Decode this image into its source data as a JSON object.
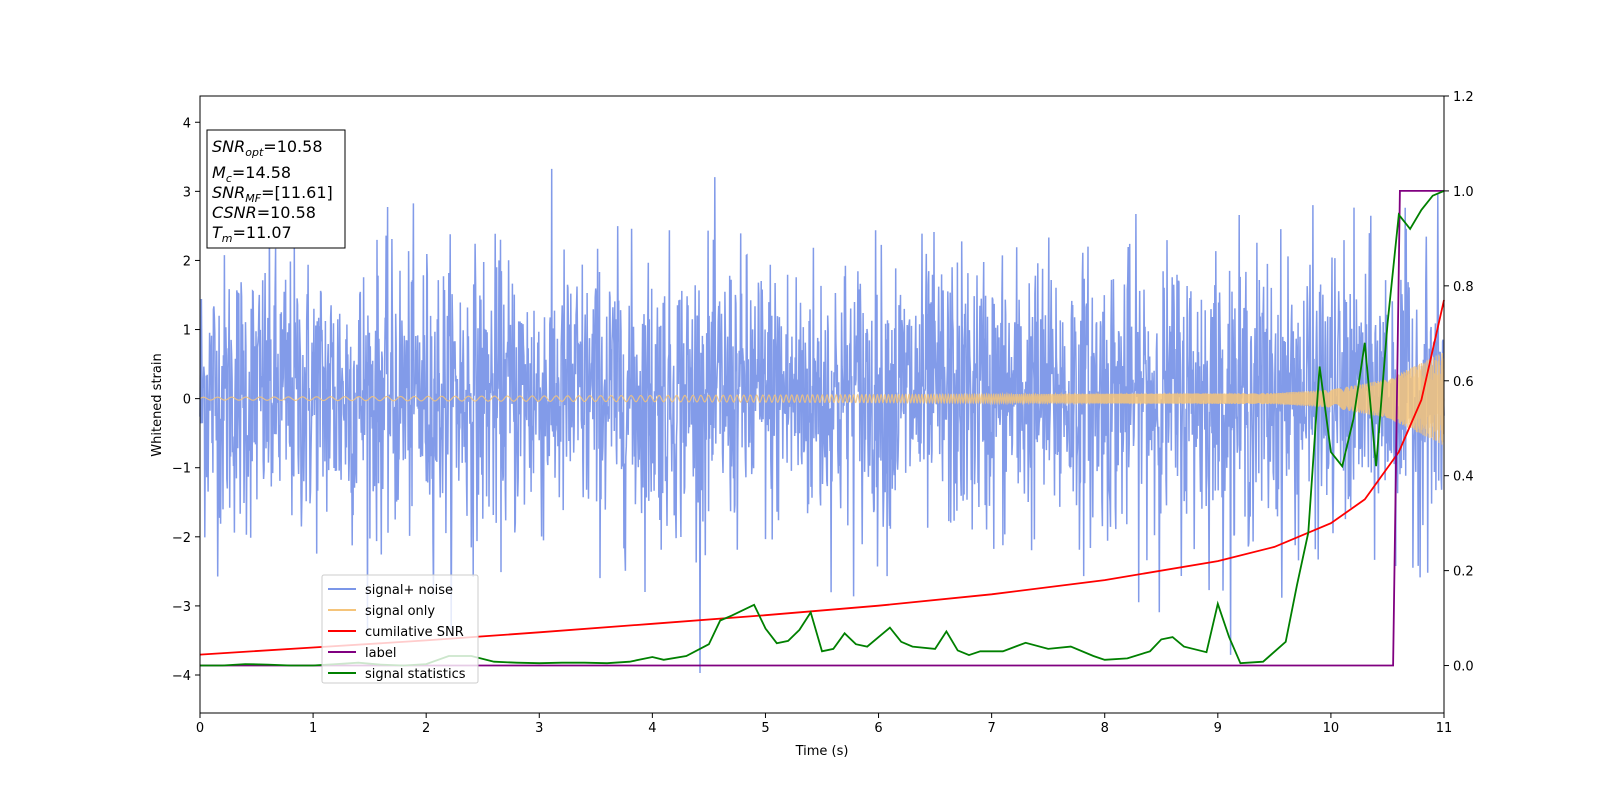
{
  "chart_data": {
    "type": "line",
    "xlabel": "Time (s)",
    "ylabel": "Whitened strain",
    "xlim": [
      0,
      11
    ],
    "ylim": [
      -4.55,
      4.38
    ],
    "y2lim": [
      -0.1,
      1.2
    ],
    "xticks": [
      "0",
      "1",
      "2",
      "3",
      "4",
      "5",
      "6",
      "7",
      "8",
      "9",
      "10",
      "11"
    ],
    "yticks": [
      "4",
      "3",
      "2",
      "1",
      "0",
      "−1",
      "−2",
      "−3",
      "−4"
    ],
    "y2ticks": [
      "0.0",
      "0.2",
      "0.4",
      "0.6",
      "0.8",
      "1.0",
      "1.2"
    ],
    "info_box": {
      "snr_opt": {
        "base": "SNR",
        "sub": "opt",
        "value": "=10.58"
      },
      "mc": {
        "base": "M",
        "sub": "c",
        "value": "=14.58"
      },
      "snr_mf": {
        "base": "SNR",
        "sub": "MF",
        "value": "=[11.61]"
      },
      "csnr": {
        "base": "CSNR",
        "sub": "",
        "value": "=10.58"
      },
      "tm": {
        "base": "T",
        "sub": "m",
        "value": "=11.07"
      }
    },
    "legend": {
      "position": "lower left",
      "items": [
        {
          "label": "signal+ noise",
          "color": "#7b96e8"
        },
        {
          "label": "signal only",
          "color": "#f5c47a"
        },
        {
          "label": "cumilative SNR",
          "color": "#ff0000"
        },
        {
          "label": "label",
          "color": "#800080"
        },
        {
          "label": "signal statistics",
          "color": "#008000"
        }
      ]
    },
    "series": [
      {
        "name": "signal+ noise",
        "axis": "left",
        "description_level": "gaussian noise, std approx 1.0, samples 0-11s",
        "color": "#7b96e8"
      },
      {
        "name": "signal only",
        "axis": "left",
        "color": "#f5c47a",
        "envelope": {
          "x": [
            0,
            9.5,
            10,
            10.5,
            11
          ],
          "amp": [
            0.02,
            0.08,
            0.13,
            0.28,
            0.68
          ]
        }
      },
      {
        "name": "cumilative SNR",
        "axis": "right",
        "color": "#ff0000",
        "x": [
          0,
          1,
          2,
          3,
          4,
          5,
          6,
          7,
          8,
          9,
          9.5,
          10,
          10.3,
          10.6,
          10.8,
          11
        ],
        "y": [
          0.023,
          0.038,
          0.053,
          0.07,
          0.088,
          0.106,
          0.126,
          0.15,
          0.18,
          0.22,
          0.25,
          0.3,
          0.35,
          0.45,
          0.56,
          0.77
        ]
      },
      {
        "name": "label",
        "axis": "right",
        "color": "#800080",
        "x": [
          0,
          10.55,
          10.61,
          11
        ],
        "y": [
          0,
          0,
          1,
          1
        ]
      },
      {
        "name": "signal statistics",
        "axis": "right",
        "color": "#008000",
        "x": [
          0,
          0.2,
          0.4,
          0.6,
          0.8,
          1.0,
          1.2,
          1.4,
          1.6,
          1.8,
          2.0,
          2.2,
          2.4,
          2.6,
          2.8,
          3.0,
          3.2,
          3.4,
          3.6,
          3.8,
          4.0,
          4.1,
          4.3,
          4.5,
          4.6,
          4.7,
          4.9,
          5.0,
          5.1,
          5.2,
          5.3,
          5.4,
          5.5,
          5.6,
          5.7,
          5.8,
          5.9,
          6.1,
          6.2,
          6.3,
          6.5,
          6.6,
          6.7,
          6.8,
          6.9,
          7.1,
          7.3,
          7.5,
          7.7,
          7.9,
          8.0,
          8.2,
          8.4,
          8.5,
          8.6,
          8.7,
          8.9,
          9.0,
          9.1,
          9.2,
          9.4,
          9.6,
          9.7,
          9.8,
          9.9,
          10.0,
          10.1,
          10.2,
          10.3,
          10.4,
          10.5,
          10.6,
          10.7,
          10.8,
          10.9,
          11.0
        ],
        "y": [
          0.0,
          0.0,
          0.003,
          0.002,
          0.0,
          0.0,
          0.003,
          0.006,
          0.002,
          0.0,
          0.003,
          0.02,
          0.02,
          0.008,
          0.006,
          0.005,
          0.006,
          0.006,
          0.005,
          0.008,
          0.018,
          0.012,
          0.02,
          0.045,
          0.095,
          0.105,
          0.128,
          0.078,
          0.047,
          0.052,
          0.075,
          0.112,
          0.03,
          0.035,
          0.068,
          0.045,
          0.04,
          0.08,
          0.05,
          0.04,
          0.035,
          0.072,
          0.032,
          0.022,
          0.03,
          0.03,
          0.048,
          0.035,
          0.04,
          0.02,
          0.012,
          0.015,
          0.03,
          0.055,
          0.06,
          0.04,
          0.028,
          0.13,
          0.06,
          0.005,
          0.008,
          0.05,
          0.17,
          0.28,
          0.63,
          0.45,
          0.42,
          0.52,
          0.68,
          0.42,
          0.72,
          0.95,
          0.92,
          0.96,
          0.99,
          1.0
        ]
      }
    ]
  }
}
